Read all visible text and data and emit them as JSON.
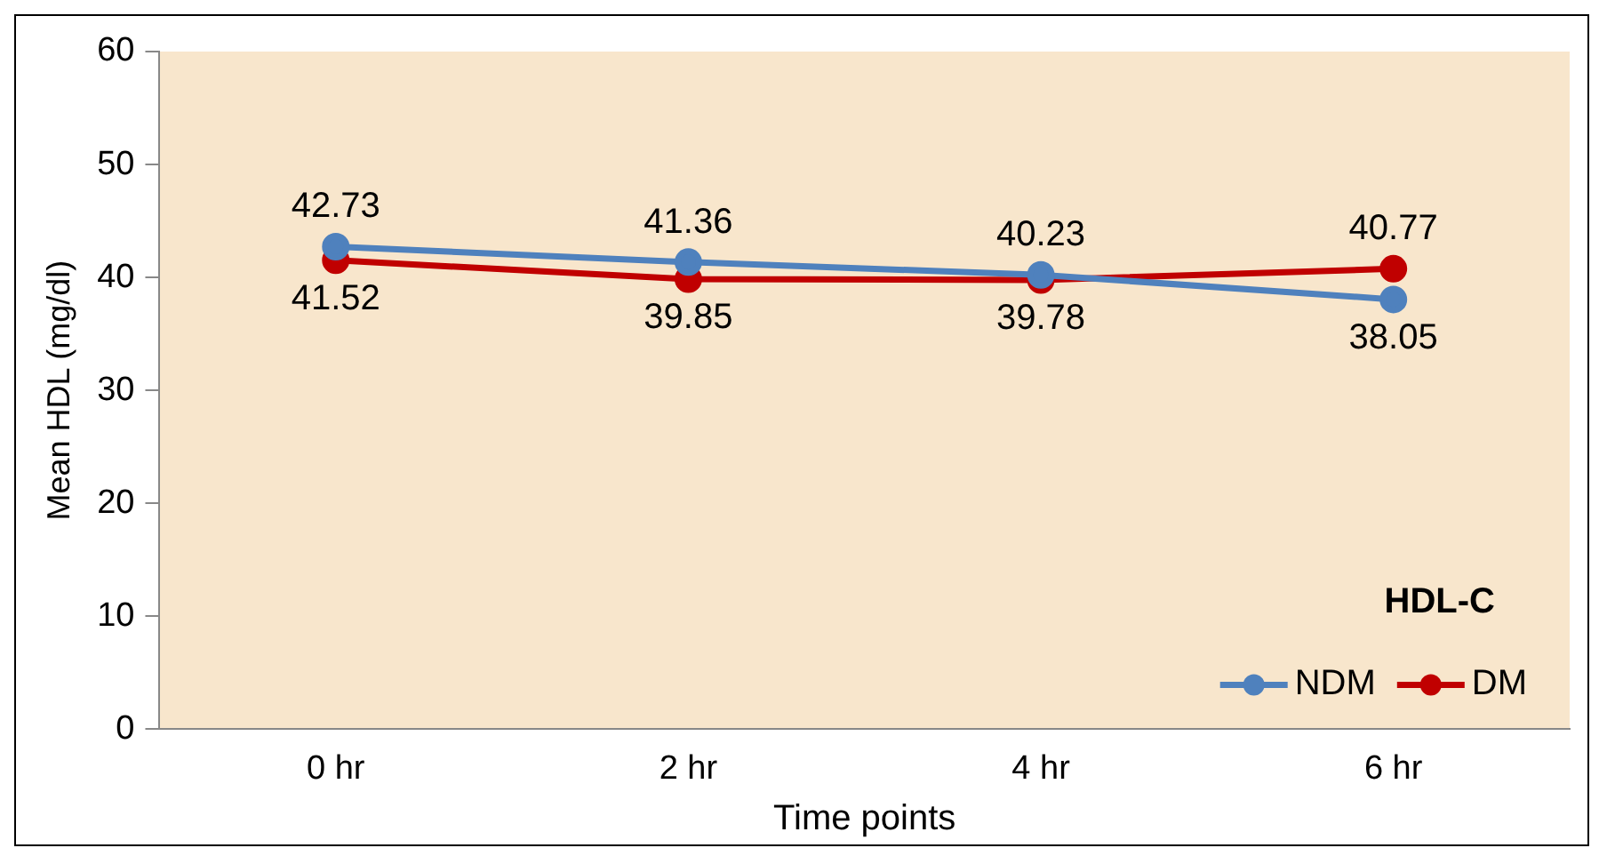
{
  "chart_data": {
    "type": "line",
    "xlabel": "Time points",
    "ylabel": "Mean HDL (mg/dl)",
    "categories": [
      "0 hr",
      "2 hr",
      "4 hr",
      "6 hr"
    ],
    "series": [
      {
        "name": "NDM",
        "color": "#4f81bd",
        "values": [
          42.73,
          41.36,
          40.23,
          38.05
        ]
      },
      {
        "name": "DM",
        "color": "#c00000",
        "values": [
          41.52,
          39.85,
          39.78,
          40.77
        ]
      }
    ],
    "ylim": [
      0,
      60
    ],
    "yticks": [
      0,
      10,
      20,
      30,
      40,
      50,
      60
    ],
    "grid": false,
    "legend": "bottom right",
    "marker": "circle",
    "line_style": "solid",
    "data_labels": true,
    "annotations": [
      "HDL-C"
    ]
  }
}
